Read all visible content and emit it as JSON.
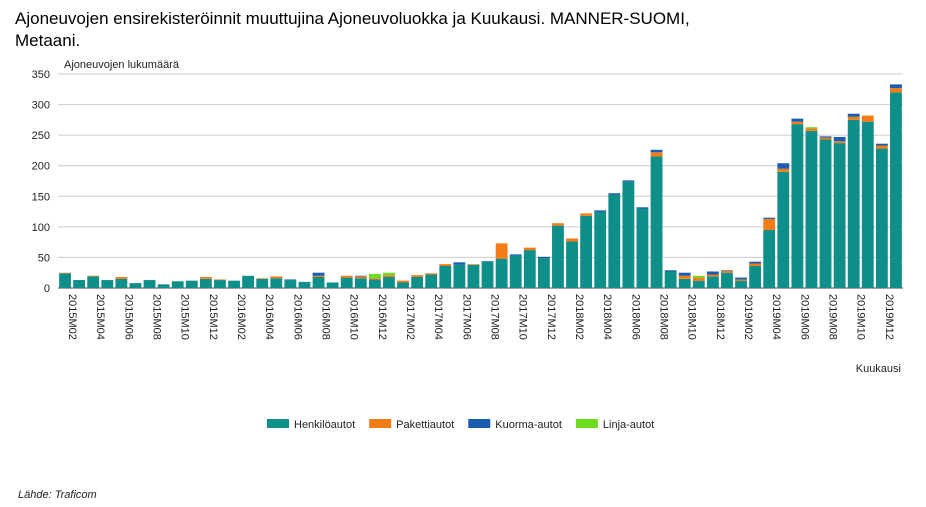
{
  "chart_data": {
    "type": "stacked_bar",
    "title_lines": [
      "Ajoneuvojen ensirekisteröinnit muuttujina Ajoneuvoluokka ja Kuukausi. MANNER-SUOMI,",
      "Metaani."
    ],
    "y_label": "Ajoneuvojen lukumäärä",
    "x_label": "Kuukausi",
    "source": "Lähde: Traficom",
    "categories": [
      "2015M02",
      null,
      "2015M04",
      null,
      "2015M06",
      null,
      "2015M08",
      null,
      "2015M10",
      null,
      "2015M12",
      null,
      "2016M02",
      null,
      "2016M04",
      null,
      "2016M06",
      null,
      "2016M08",
      null,
      "2016M10",
      null,
      "2016M12",
      null,
      "2017M02",
      null,
      "2017M04",
      null,
      "2017M06",
      null,
      "2017M08",
      null,
      "2017M10",
      null,
      "2017M12",
      null,
      "2018M02",
      null,
      "2018M04",
      null,
      "2018M06",
      null,
      "2018M08",
      null,
      "2018M10",
      null,
      "2018M12",
      null,
      "2019M02",
      null,
      "2019M04",
      null,
      "2019M06",
      null,
      "2019M08",
      null,
      "2019M10",
      null,
      "2019M12",
      null
    ],
    "series": [
      {
        "name": "Henkilöautot",
        "color": "#0e8f8a",
        "values": [
          24,
          13,
          19,
          13,
          15,
          8,
          13,
          6,
          11,
          12,
          15,
          13,
          12,
          20,
          15,
          16,
          13,
          10,
          18,
          9,
          17,
          16,
          14,
          18,
          9,
          18,
          22,
          36,
          38,
          38,
          43,
          48,
          53,
          62,
          49,
          102,
          76,
          118,
          125,
          153,
          174,
          130,
          215,
          27,
          15,
          12,
          19,
          25,
          12,
          36,
          95,
          190,
          268,
          257,
          243,
          237,
          275,
          272,
          228,
          320
        ]
      },
      {
        "name": "Pakettiautot",
        "color": "#f47c14",
        "values": [
          1,
          0,
          1,
          0,
          3,
          0,
          0,
          0,
          0,
          0,
          3,
          1,
          0,
          0,
          1,
          3,
          0,
          0,
          2,
          0,
          3,
          3,
          2,
          3,
          3,
          3,
          2,
          3,
          0,
          1,
          0,
          25,
          0,
          4,
          0,
          4,
          5,
          4,
          0,
          0,
          0,
          0,
          7,
          0,
          5,
          5,
          3,
          3,
          2,
          4,
          18,
          5,
          4,
          4,
          3,
          3,
          5,
          10,
          5,
          7
        ]
      },
      {
        "name": "Kuorma-autot",
        "color": "#1a5cb0",
        "values": [
          0,
          0,
          0,
          0,
          0,
          0,
          0,
          0,
          0,
          0,
          0,
          0,
          0,
          0,
          0,
          0,
          1,
          0,
          5,
          0,
          0,
          1,
          0,
          0,
          0,
          0,
          0,
          0,
          4,
          0,
          1,
          0,
          2,
          0,
          2,
          0,
          0,
          0,
          2,
          2,
          2,
          2,
          4,
          2,
          5,
          0,
          5,
          1,
          3,
          3,
          2,
          9,
          5,
          0,
          2,
          7,
          5,
          0,
          3,
          6
        ]
      },
      {
        "name": "Linja-autot",
        "color": "#6ddc1e",
        "values": [
          0,
          0,
          0,
          0,
          0,
          0,
          0,
          0,
          0,
          0,
          0,
          0,
          0,
          0,
          0,
          0,
          0,
          0,
          0,
          0,
          0,
          0,
          7,
          4,
          0,
          0,
          0,
          0,
          0,
          0,
          0,
          0,
          0,
          0,
          0,
          0,
          0,
          0,
          0,
          0,
          0,
          0,
          0,
          0,
          0,
          3,
          0,
          0,
          0,
          0,
          0,
          0,
          0,
          2,
          0,
          0,
          0,
          0,
          0,
          0
        ]
      }
    ],
    "ylim": [
      0,
      350
    ],
    "yticks": [
      0,
      50,
      100,
      150,
      200,
      250,
      300,
      350
    ],
    "grid": true
  }
}
